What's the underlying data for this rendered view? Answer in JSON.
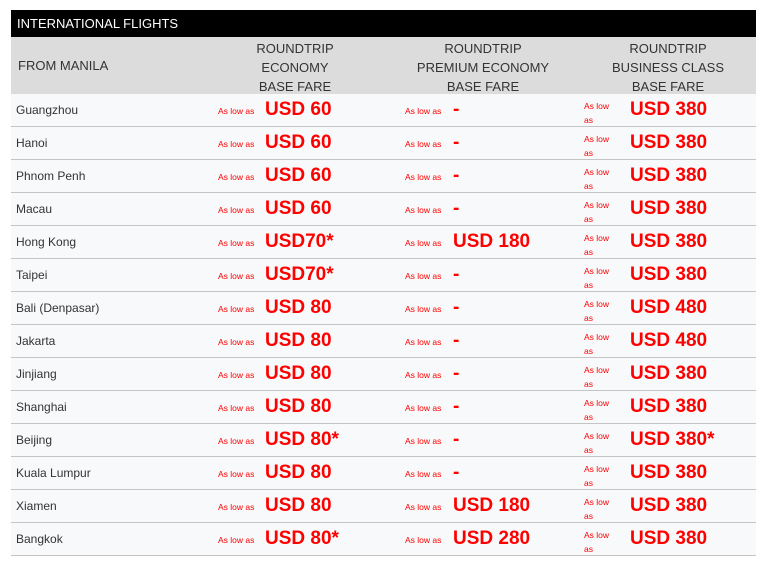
{
  "title": "INTERNATIONAL FLIGHTS",
  "headers": {
    "from": "FROM MANILA",
    "economy": [
      "ROUNDTRIP",
      "ECONOMY",
      "BASE FARE"
    ],
    "premium": [
      "ROUNDTRIP",
      "PREMIUM ECONOMY",
      "BASE FARE"
    ],
    "business": [
      "ROUNDTRIP",
      "BUSINESS CLASS",
      "BASE FARE"
    ]
  },
  "as_low_as": "As low as",
  "accent": "#ff0000",
  "rows": [
    {
      "city": "Guangzhou",
      "economy": "USD 60",
      "premium": "-",
      "business": "USD 380"
    },
    {
      "city": "Hanoi",
      "economy": "USD 60",
      "premium": "-",
      "business": "USD 380"
    },
    {
      "city": "Phnom Penh",
      "economy": "USD 60",
      "premium": "-",
      "business": "USD 380"
    },
    {
      "city": "Macau",
      "economy": "USD 60",
      "premium": "-",
      "business": "USD 380"
    },
    {
      "city": "Hong Kong",
      "economy": "USD70*",
      "premium": "USD 180",
      "business": "USD 380"
    },
    {
      "city": "Taipei",
      "economy": "USD70*",
      "premium": "-",
      "business": "USD 380"
    },
    {
      "city": "Bali (Denpasar)",
      "economy": "USD 80",
      "premium": "-",
      "business": "USD 480"
    },
    {
      "city": "Jakarta",
      "economy": "USD 80",
      "premium": "-",
      "business": "USD 480"
    },
    {
      "city": "Jinjiang",
      "economy": "USD 80",
      "premium": "-",
      "business": "USD 380"
    },
    {
      "city": "Shanghai",
      "economy": "USD 80",
      "premium": "-",
      "business": "USD 380"
    },
    {
      "city": "Beijing",
      "economy": "USD 80*",
      "premium": "-",
      "business": "USD 380*"
    },
    {
      "city": "Kuala Lumpur",
      "economy": "USD 80",
      "premium": "-",
      "business": "USD 380"
    },
    {
      "city": "Xiamen",
      "economy": "USD 80",
      "premium": "USD 180",
      "business": "USD 380"
    },
    {
      "city": "Bangkok",
      "economy": "USD 80*",
      "premium": "USD 280",
      "business": "USD 380"
    }
  ]
}
